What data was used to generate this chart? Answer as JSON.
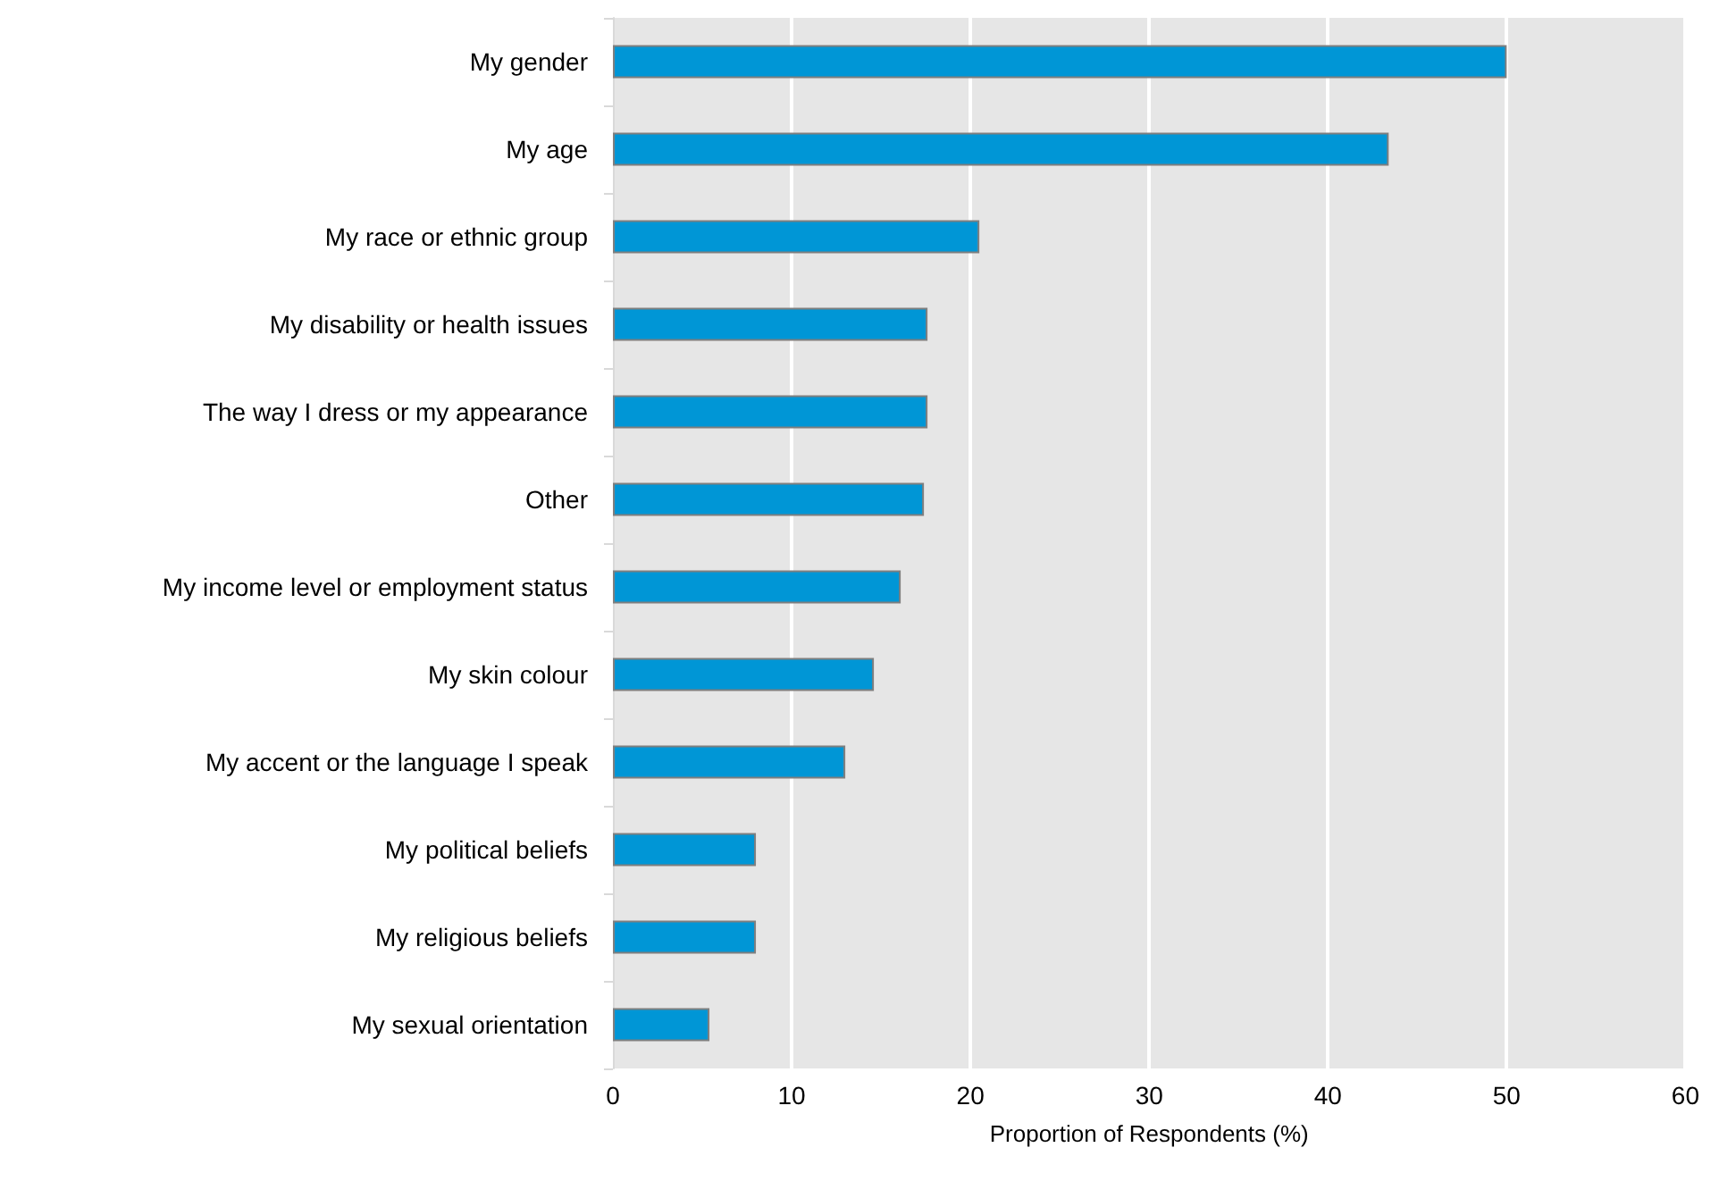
{
  "chart_data": {
    "type": "bar",
    "orientation": "horizontal",
    "xlabel": "Proportion of Respondents (%)",
    "categories": [
      "My gender",
      "My age",
      "My race or ethnic group",
      "My disability or health issues",
      "The way I dress or my appearance",
      "Other",
      "My income level or employment status",
      "My skin colour",
      "My accent or the language I speak",
      "My political beliefs",
      "My religious beliefs",
      "My sexual orientation"
    ],
    "values": [
      50.0,
      43.4,
      20.5,
      17.6,
      17.6,
      17.4,
      16.1,
      14.6,
      13.0,
      8.0,
      8.0,
      5.4
    ],
    "color": "#0096d6",
    "xlim": [
      0,
      60
    ],
    "xticks": [
      0,
      10,
      20,
      30,
      40,
      50,
      60
    ],
    "grid": "x"
  }
}
